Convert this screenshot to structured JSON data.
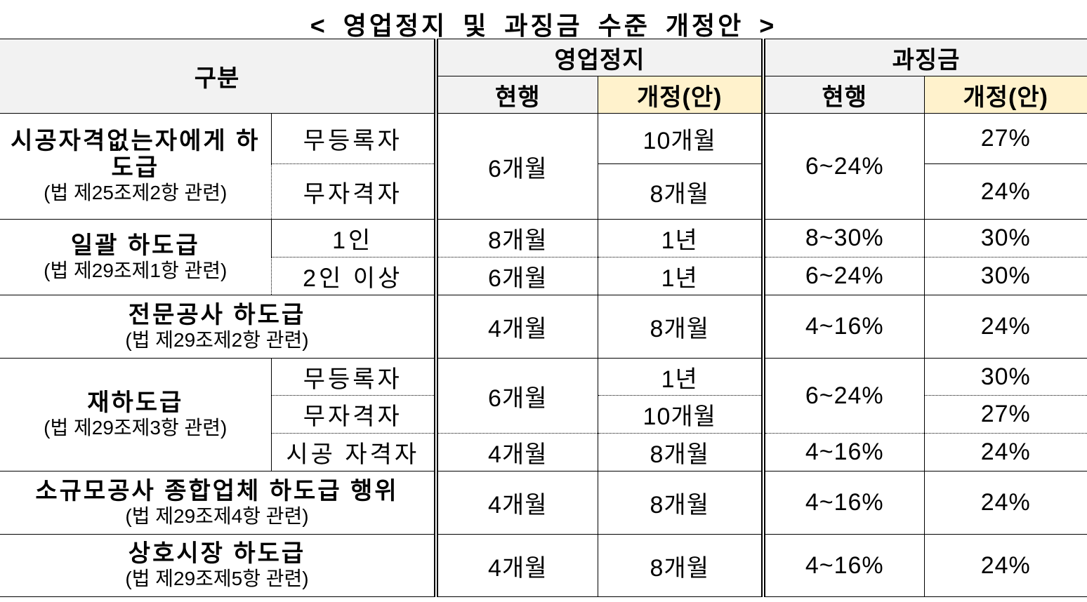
{
  "title": "< 영업정지 및 과징금 수준 개정안 >",
  "header": {
    "category": "구분",
    "suspension": "영업정지",
    "penalty": "과징금",
    "current": "현행",
    "revised": "개정(안)"
  },
  "rows": {
    "g1": {
      "label": "시공자격없는자에게 하도급",
      "law": "(법 제25조제2항 관련)",
      "sub1": "무등록자",
      "sub2": "무자격자",
      "susp_cur": "6개월",
      "susp_rev1": "10개월",
      "susp_rev2": "8개월",
      "pen_cur": "6~24%",
      "pen_rev1": "27%",
      "pen_rev2": "24%"
    },
    "g2": {
      "label": "일괄 하도급",
      "law": "(법 제29조제1항 관련)",
      "sub1": "1인",
      "sub2": "2인 이상",
      "susp_cur1": "8개월",
      "susp_rev1": "1년",
      "pen_cur1": "8~30%",
      "pen_rev1": "30%",
      "susp_cur2": "6개월",
      "susp_rev2": "1년",
      "pen_cur2": "6~24%",
      "pen_rev2": "30%"
    },
    "g3": {
      "label": "전문공사 하도급",
      "law": "(법 제29조제2항 관련)",
      "susp_cur": "4개월",
      "susp_rev": "8개월",
      "pen_cur": "4~16%",
      "pen_rev": "24%"
    },
    "g4": {
      "label": "재하도급",
      "law": "(법 제29조제3항 관련)",
      "sub1": "무등록자",
      "sub2": "무자격자",
      "sub3": "시공 자격자",
      "susp_cur12": "6개월",
      "susp_rev1": "1년",
      "susp_rev2": "10개월",
      "pen_cur12": "6~24%",
      "pen_rev1": "30%",
      "pen_rev2": "27%",
      "susp_cur3": "4개월",
      "susp_rev3": "8개월",
      "pen_cur3": "4~16%",
      "pen_rev3": "24%"
    },
    "g5": {
      "label": "소규모공사 종합업체 하도급 행위",
      "law": "(법 제29조제4항 관련)",
      "susp_cur": "4개월",
      "susp_rev": "8개월",
      "pen_cur": "4~16%",
      "pen_rev": "24%"
    },
    "g6": {
      "label": "상호시장 하도급",
      "law": "(법 제29조제5항 관련)",
      "susp_cur": "4개월",
      "susp_rev": "8개월",
      "pen_cur": "4~16%",
      "pen_rev": "24%"
    }
  },
  "colors": {
    "header_bg": "#f2f2f2",
    "revised_bg": "#fff2cc"
  }
}
